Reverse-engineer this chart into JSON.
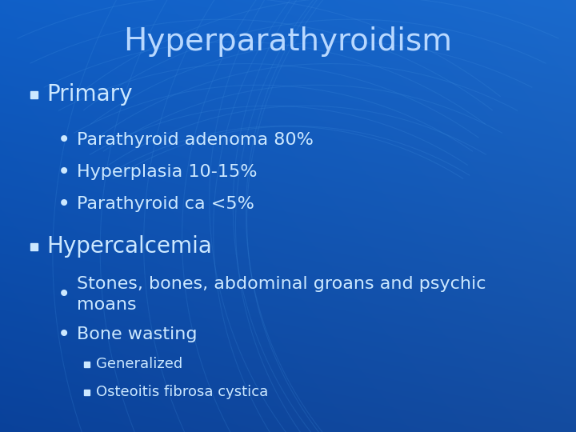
{
  "title": "Hyperparathyroidism",
  "title_color": "#B8D8FF",
  "title_fontsize": 28,
  "bg_color_left": "#0B5AC8",
  "bg_color_right": "#1A6FDB",
  "bg_color_top": "#1060C8",
  "bg_color_bottom": "#0A3A8C",
  "text_color": "#CCE8FF",
  "content": [
    {
      "level": 0,
      "marker": "square",
      "text": "Primary",
      "fontsize": 20,
      "bold": false
    },
    {
      "level": 1,
      "marker": "bullet",
      "text": "Parathyroid adenoma 80%",
      "fontsize": 16,
      "bold": false
    },
    {
      "level": 1,
      "marker": "bullet",
      "text": "Hyperplasia 10-15%",
      "fontsize": 16,
      "bold": false
    },
    {
      "level": 1,
      "marker": "bullet",
      "text": "Parathyroid ca <5%",
      "fontsize": 16,
      "bold": false
    },
    {
      "level": 0,
      "marker": "square",
      "text": "Hypercalcemia",
      "fontsize": 20,
      "bold": false
    },
    {
      "level": 1,
      "marker": "bullet",
      "text": "Stones, bones, abdominal groans and psychic\nmoans",
      "fontsize": 16,
      "bold": false
    },
    {
      "level": 1,
      "marker": "bullet",
      "text": "Bone wasting",
      "fontsize": 16,
      "bold": false
    },
    {
      "level": 2,
      "marker": "square_small",
      "text": "Generalized",
      "fontsize": 13,
      "bold": false
    },
    {
      "level": 2,
      "marker": "square_small",
      "text": "Osteoitis fibrosa cystica",
      "fontsize": 13,
      "bold": false
    }
  ],
  "figsize": [
    7.2,
    5.4
  ],
  "dpi": 100
}
